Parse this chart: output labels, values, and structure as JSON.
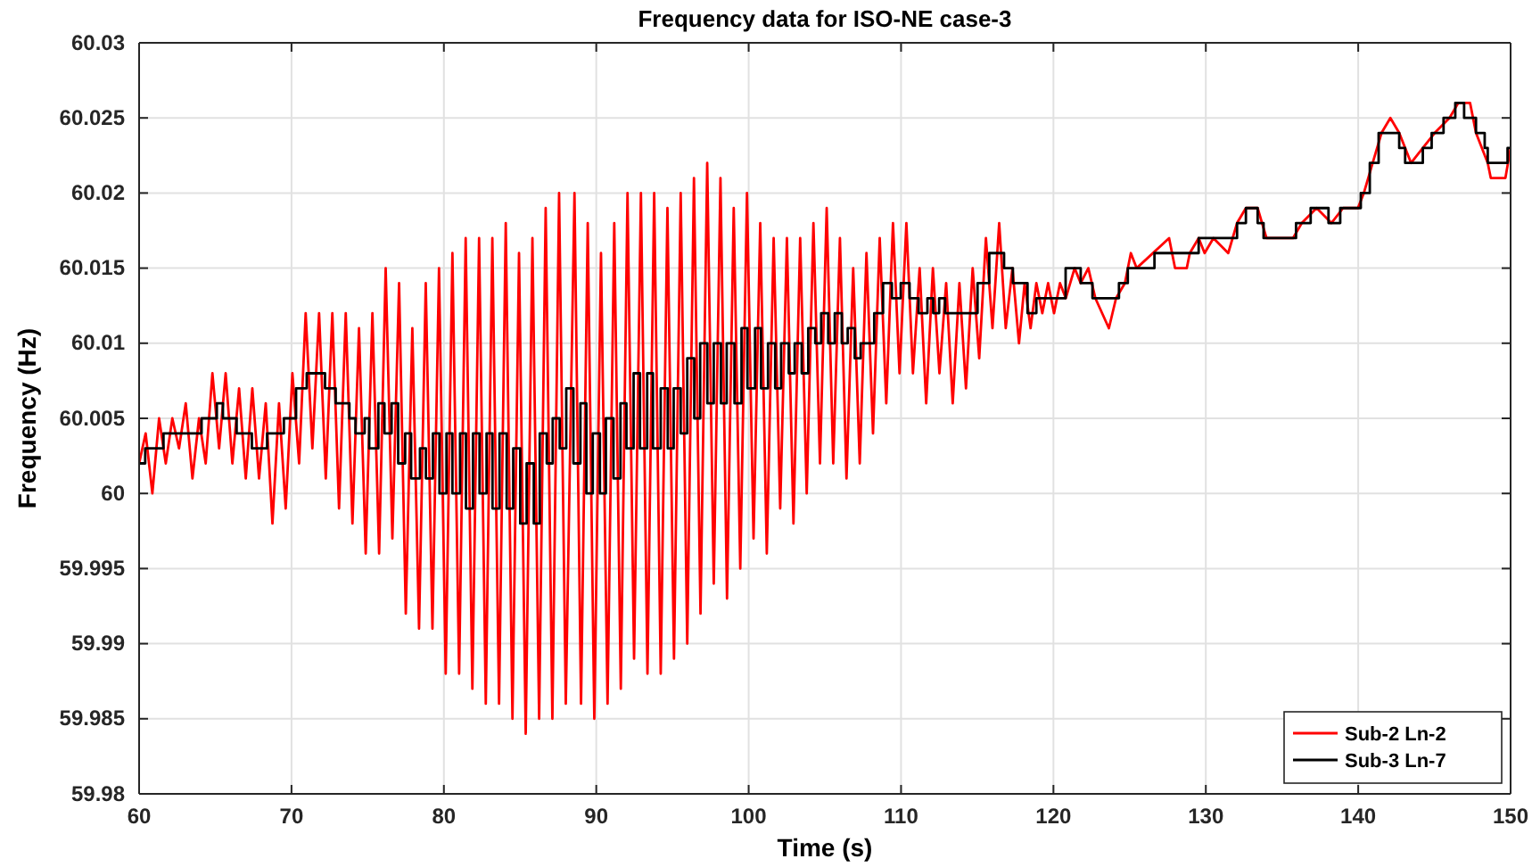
{
  "chart_data": {
    "type": "line",
    "title": "Frequency data for ISO-NE case-3",
    "xlabel": "Time (s)",
    "ylabel": "Frequency (Hz)",
    "xlim": [
      60,
      150
    ],
    "xticks": [
      60,
      70,
      80,
      90,
      100,
      110,
      120,
      130,
      140,
      150
    ],
    "ylim": [
      59.98,
      60.03
    ],
    "yticks": [
      59.98,
      59.985,
      59.99,
      59.995,
      60,
      60.005,
      60.01,
      60.015,
      60.02,
      60.025,
      60.03
    ],
    "grid": true,
    "legend": "bottom right",
    "line_style": "solid",
    "series": [
      {
        "name": "Sub-2 Ln-2",
        "color": "#ff0000",
        "x": [
          60,
          60.43,
          60.87,
          61.31,
          61.75,
          62.18,
          62.62,
          63.06,
          63.5,
          63.93,
          64.37,
          64.81,
          65.25,
          65.68,
          66.12,
          66.56,
          67,
          67.43,
          67.87,
          68.31,
          68.75,
          69.18,
          69.62,
          70.06,
          70.5,
          70.93,
          71.37,
          71.81,
          72.25,
          72.68,
          73.12,
          73.56,
          74,
          74.43,
          74.87,
          75.31,
          75.75,
          76.18,
          76.62,
          77.06,
          77.5,
          77.93,
          78.37,
          78.81,
          79.25,
          79.68,
          80.12,
          80.56,
          81,
          81.43,
          81.87,
          82.31,
          82.75,
          83.18,
          83.62,
          84.06,
          84.5,
          84.93,
          85.37,
          85.81,
          86.25,
          86.68,
          87.12,
          87.56,
          88,
          88.57,
          89,
          89.44,
          89.87,
          90.31,
          90.74,
          91.18,
          91.61,
          92.05,
          92.48,
          92.93,
          93.36,
          93.8,
          94.23,
          94.67,
          95.1,
          95.54,
          95.97,
          96.41,
          96.84,
          97.28,
          97.71,
          98.15,
          98.58,
          99.02,
          99.45,
          99.89,
          100.32,
          100.76,
          101.19,
          101.64,
          102.07,
          102.51,
          102.94,
          103.38,
          103.81,
          104.25,
          104.68,
          105.12,
          105.55,
          105.99,
          106.42,
          106.86,
          107.29,
          107.73,
          108.16,
          108.6,
          109.03,
          109.47,
          109.9,
          110.35,
          110.78,
          111.22,
          111.65,
          112.09,
          112.52,
          112.96,
          113.39,
          113.83,
          114.26,
          114.7,
          115.13,
          115.57,
          116,
          116.44,
          116.87,
          117.31,
          117.74,
          118.11,
          118.5,
          118.88,
          119.27,
          119.65,
          120.04,
          120.43,
          120.81,
          121.39,
          121.79,
          122.29,
          122.75,
          123.64,
          124.11,
          124.69,
          125.08,
          125.46,
          127.59,
          127.98,
          128.75,
          128.95,
          129.53,
          129.92,
          130.5,
          131.47,
          132.05,
          132.63,
          133.4,
          133.98,
          135.72,
          136.3,
          137.27,
          138.24,
          139.01,
          139.98,
          140.37,
          140.95,
          141.53,
          142.11,
          142.69,
          143.47,
          144.24,
          145.02,
          145.99,
          146.57,
          147.34,
          147.73,
          148.5,
          148.7,
          149.66,
          150
        ],
        "values": [
          60.002,
          60.004,
          60,
          60.005,
          60.002,
          60.005,
          60.003,
          60.006,
          60.001,
          60.005,
          60.002,
          60.008,
          60.003,
          60.008,
          60.002,
          60.007,
          60.001,
          60.007,
          60.001,
          60.006,
          59.998,
          60.006,
          59.999,
          60.008,
          60.002,
          60.012,
          60.003,
          60.012,
          60.001,
          60.012,
          59.999,
          60.012,
          59.998,
          60.011,
          59.996,
          60.012,
          59.996,
          60.015,
          59.997,
          60.014,
          59.992,
          60.011,
          59.991,
          60.014,
          59.991,
          60.015,
          59.988,
          60.016,
          59.988,
          60.017,
          59.987,
          60.017,
          59.986,
          60.017,
          59.986,
          60.018,
          59.985,
          60.016,
          59.984,
          60.017,
          59.985,
          60.019,
          59.985,
          60.02,
          59.986,
          60.02,
          59.986,
          60.018,
          59.985,
          60.016,
          59.986,
          60.018,
          59.987,
          60.02,
          59.989,
          60.02,
          59.988,
          60.02,
          59.988,
          60.019,
          59.989,
          60.02,
          59.99,
          60.021,
          59.992,
          60.022,
          59.994,
          60.021,
          59.993,
          60.019,
          59.995,
          60.02,
          59.997,
          60.018,
          59.996,
          60.017,
          59.999,
          60.017,
          59.998,
          60.017,
          60,
          60.018,
          60.002,
          60.019,
          60.002,
          60.017,
          60.001,
          60.015,
          60.002,
          60.016,
          60.004,
          60.017,
          60.006,
          60.018,
          60.008,
          60.018,
          60.008,
          60.015,
          60.006,
          60.015,
          60.008,
          60.014,
          60.006,
          60.014,
          60.007,
          60.015,
          60.009,
          60.017,
          60.011,
          60.018,
          60.011,
          60.015,
          60.01,
          60.014,
          60.011,
          60.014,
          60.012,
          60.014,
          60.012,
          60.014,
          60.013,
          60.015,
          60.014,
          60.015,
          60.013,
          60.011,
          60.013,
          60.014,
          60.016,
          60.015,
          60.017,
          60.015,
          60.015,
          60.016,
          60.017,
          60.016,
          60.017,
          60.016,
          60.018,
          60.019,
          60.019,
          60.017,
          60.017,
          60.018,
          60.019,
          60.018,
          60.019,
          60.019,
          60.02,
          60.022,
          60.024,
          60.025,
          60.024,
          60.022,
          60.023,
          60.024,
          60.025,
          60.026,
          60.026,
          60.024,
          60.022,
          60.021,
          60.021,
          60.023
        ]
      },
      {
        "name": "Sub-3 Ln-7",
        "color": "#000000",
        "type": "step",
        "x": [
          60,
          60.4,
          61.6,
          64.1,
          65.1,
          65.5,
          66.4,
          67.4,
          68.4,
          69.5,
          70.3,
          71,
          72.2,
          72.9,
          73.8,
          74.2,
          74.8,
          75.1,
          75.7,
          76.1,
          76.57,
          77,
          77.46,
          77.85,
          78.43,
          78.82,
          79.28,
          79.71,
          80.17,
          80.56,
          81.06,
          81.45,
          81.91,
          82.34,
          82.8,
          83.19,
          83.65,
          84.12,
          84.55,
          85.01,
          85.43,
          85.9,
          86.29,
          86.75,
          87.14,
          87.6,
          88.03,
          88.5,
          88.96,
          89.35,
          89.77,
          90.24,
          90.63,
          91.13,
          91.59,
          91.98,
          92.45,
          92.87,
          93.34,
          93.72,
          94.23,
          94.69,
          95.08,
          95.54,
          95.97,
          96.43,
          96.82,
          97.29,
          97.71,
          98.18,
          98.56,
          99.07,
          99.53,
          99.92,
          100.42,
          100.81,
          101.27,
          101.74,
          102.13,
          102.63,
          103.02,
          103.48,
          103.91,
          104.37,
          104.76,
          105.22,
          105.65,
          106.11,
          106.5,
          106.96,
          107.35,
          108.24,
          108.82,
          109.4,
          109.98,
          110.56,
          111.15,
          111.73,
          112.11,
          112.5,
          112.89,
          115.02,
          115.79,
          116.76,
          117.34,
          118.3,
          118.88,
          120.8,
          121.79,
          122.56,
          124.3,
          124.88,
          126.63,
          129.53,
          132.05,
          132.63,
          133.4,
          133.79,
          135.92,
          136.88,
          138.05,
          138.82,
          140.17,
          140.76,
          141.34,
          142.69,
          143.08,
          144.24,
          144.82,
          145.6,
          146.37,
          146.95,
          147.73,
          148.3,
          148.5,
          149.8,
          150
        ],
        "values": [
          60.002,
          60.003,
          60.004,
          60.005,
          60.006,
          60.005,
          60.004,
          60.003,
          60.004,
          60.005,
          60.007,
          60.008,
          60.007,
          60.006,
          60.005,
          60.004,
          60.005,
          60.003,
          60.006,
          60.004,
          60.006,
          60.002,
          60.004,
          60.001,
          60.003,
          60.001,
          60.004,
          60,
          60.004,
          60,
          60.004,
          59.999,
          60.004,
          60,
          60.004,
          59.999,
          60.004,
          59.999,
          60.003,
          59.998,
          60.002,
          59.998,
          60.004,
          60.002,
          60.005,
          60.003,
          60.007,
          60.002,
          60.006,
          60,
          60.004,
          60,
          60.005,
          60.001,
          60.006,
          60.003,
          60.008,
          60.003,
          60.008,
          60.003,
          60.007,
          60.003,
          60.007,
          60.004,
          60.009,
          60.005,
          60.01,
          60.006,
          60.01,
          60.006,
          60.01,
          60.006,
          60.011,
          60.007,
          60.011,
          60.007,
          60.01,
          60.007,
          60.01,
          60.008,
          60.01,
          60.008,
          60.011,
          60.01,
          60.012,
          60.01,
          60.012,
          60.01,
          60.011,
          60.009,
          60.01,
          60.012,
          60.014,
          60.013,
          60.014,
          60.013,
          60.012,
          60.013,
          60.012,
          60.013,
          60.012,
          60.014,
          60.016,
          60.015,
          60.014,
          60.012,
          60.013,
          60.015,
          60.014,
          60.013,
          60.014,
          60.015,
          60.016,
          60.017,
          60.018,
          60.019,
          60.018,
          60.017,
          60.018,
          60.019,
          60.018,
          60.019,
          60.02,
          60.022,
          60.024,
          60.023,
          60.022,
          60.023,
          60.024,
          60.025,
          60.026,
          60.025,
          60.024,
          60.023,
          60.022,
          60.023,
          60.023
        ]
      }
    ]
  }
}
